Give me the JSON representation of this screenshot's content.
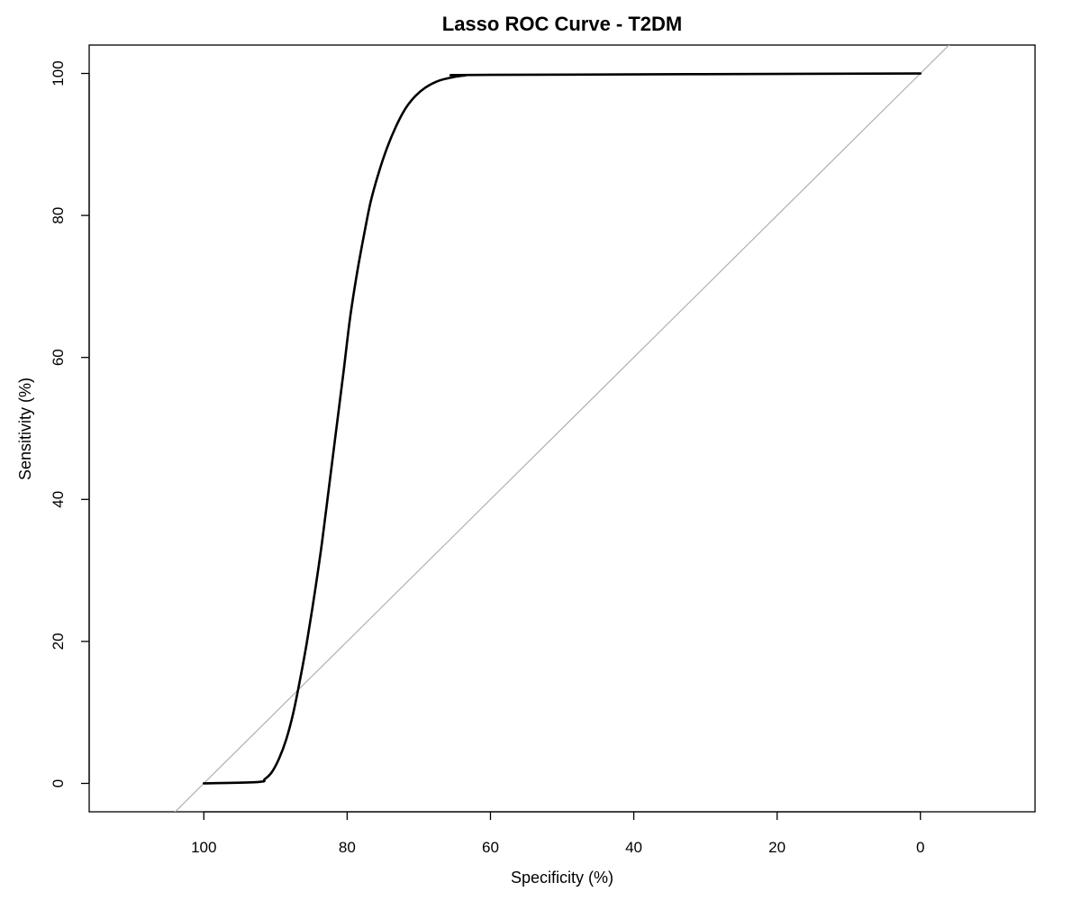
{
  "chart_data": {
    "type": "line",
    "title": "Lasso ROC Curve - T2DM",
    "xlabel": "Specificity (%)",
    "ylabel": "Sensitivity (%)",
    "x_reversed": true,
    "xlim": [
      116,
      -16
    ],
    "ylim": [
      -4,
      104
    ],
    "x_ticks": [
      "100",
      "80",
      "60",
      "40",
      "20",
      "0"
    ],
    "x_tick_values": [
      100,
      80,
      60,
      40,
      20,
      0
    ],
    "y_ticks": [
      "0",
      "20",
      "40",
      "60",
      "80",
      "100"
    ],
    "y_tick_values": [
      0,
      20,
      40,
      60,
      80,
      100
    ],
    "grid": false,
    "legend": "none",
    "series": [
      {
        "color": "#000000",
        "x": [
          100,
          92.4,
          91.5,
          90.5,
          89.5,
          88.5,
          87.5,
          86.5,
          85.6,
          84.5,
          83.5,
          82.5,
          81.5,
          80.5,
          79.6,
          78.6,
          77.6,
          76.7,
          75.6,
          74.4,
          73.2,
          71.9,
          70.5,
          69.1,
          67.4,
          65.6,
          63.6,
          60,
          0
        ],
        "y": [
          0,
          0.2,
          0.6,
          1.6,
          3.5,
          6.2,
          10,
          15,
          20,
          27,
          34,
          42,
          50,
          58,
          65.5,
          72,
          77.5,
          82,
          86,
          89.6,
          92.5,
          95,
          96.8,
          98,
          98.9,
          99.4,
          99.7,
          99.8,
          100
        ]
      }
    ],
    "reference_line": {
      "color": "#b0b0b0",
      "from": [
        100,
        0
      ],
      "to": [
        0,
        100
      ]
    }
  }
}
